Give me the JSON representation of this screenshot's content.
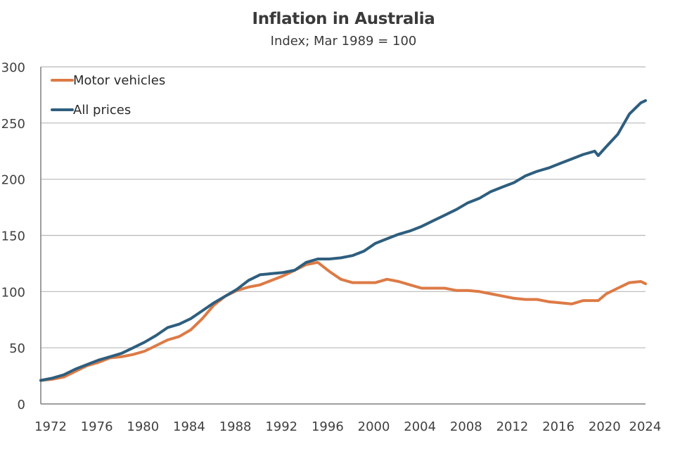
{
  "chart_data": {
    "type": "line",
    "title": "Inflation in Australia",
    "subtitle": "Index; Mar 1989  = 100",
    "xlabel": "",
    "ylabel": "",
    "xlim": [
      1972,
      2024.4
    ],
    "ylim": [
      0,
      300
    ],
    "grid": true,
    "legend_position": "top-left",
    "x_ticks": [
      "1972",
      "1976",
      "1980",
      "1984",
      "1988",
      "1992",
      "1996",
      "2000",
      "2004",
      "2008",
      "2012",
      "2016",
      "2020",
      "2024"
    ],
    "y_ticks": [
      "0",
      "50",
      "100",
      "150",
      "200",
      "250",
      "300"
    ],
    "x": [
      1972,
      1973,
      1974,
      1975,
      1976,
      1977,
      1978,
      1979,
      1980,
      1981,
      1982,
      1983,
      1984,
      1985,
      1986,
      1987,
      1988,
      1989,
      1990,
      1991,
      1992,
      1993,
      1994,
      1995,
      1996,
      1997,
      1998,
      1999,
      2000,
      2001,
      2002,
      2003,
      2004,
      2005,
      2006,
      2007,
      2008,
      2009,
      2010,
      2011,
      2012,
      2013,
      2014,
      2015,
      2016,
      2017,
      2018,
      2019,
      2020,
      2020.3,
      2021,
      2022,
      2023,
      2024,
      2024.4
    ],
    "series": [
      {
        "name": "Motor vehicles",
        "color": "#DD7A45",
        "values": [
          21,
          22,
          24,
          29,
          34,
          37,
          41,
          42,
          44,
          47,
          52,
          57,
          60,
          66,
          76,
          88,
          96,
          101,
          104,
          106,
          110,
          114,
          119,
          124,
          126,
          118,
          111,
          108,
          108,
          108,
          111,
          109,
          106,
          103,
          103,
          103,
          101,
          101,
          100,
          98,
          96,
          94,
          93,
          93,
          91,
          90,
          89,
          92,
          92,
          92,
          98,
          103,
          108,
          109,
          107
        ]
      },
      {
        "name": "All prices",
        "color": "#2E5E7E",
        "values": [
          21,
          23,
          26,
          31,
          35,
          39,
          42,
          45,
          50,
          55,
          61,
          68,
          71,
          76,
          83,
          90,
          96,
          102,
          110,
          115,
          116,
          117,
          119,
          126,
          129,
          129,
          130,
          132,
          136,
          143,
          147,
          151,
          154,
          158,
          163,
          168,
          173,
          179,
          183,
          189,
          193,
          197,
          203,
          207,
          210,
          214,
          218,
          222,
          225,
          221,
          229,
          240,
          258,
          268,
          270
        ]
      }
    ]
  }
}
